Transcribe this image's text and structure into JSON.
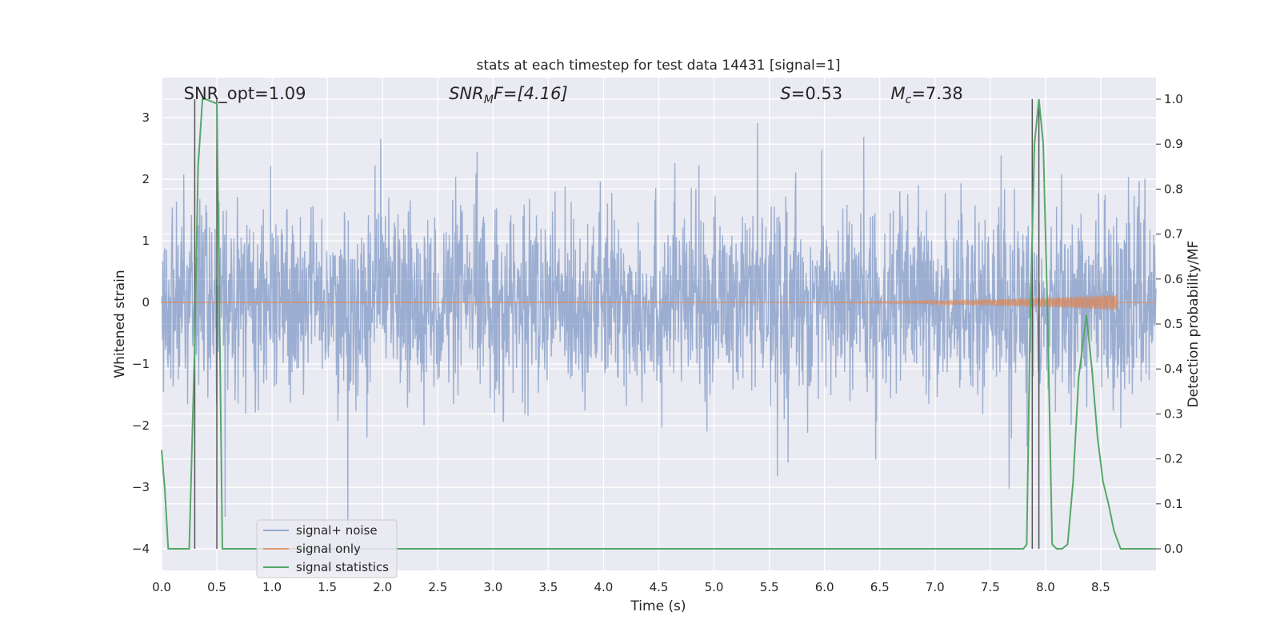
{
  "chart_data": {
    "type": "line",
    "title": "stats at each timestep for test data 14431 [signal=1]",
    "xlabel": "Time (s)",
    "ylabel": "Whitened strain",
    "y2label": "Detection probability/MF",
    "xlim": [
      0,
      9.0
    ],
    "ylim": [
      -4.35,
      3.65
    ],
    "y2lim": [
      -0.048,
      1.048
    ],
    "grid": true,
    "x_ticks": [
      "0.0",
      "0.5",
      "1.0",
      "1.5",
      "2.0",
      "2.5",
      "3.0",
      "3.5",
      "4.0",
      "4.5",
      "5.0",
      "5.5",
      "6.0",
      "6.5",
      "7.0",
      "7.5",
      "8.0",
      "8.5"
    ],
    "y_ticks": [
      "3",
      "2",
      "1",
      "0",
      "−1",
      "−2",
      "−3",
      "−4"
    ],
    "y2_ticks": [
      "1.0",
      "0.9",
      "0.8",
      "0.7",
      "0.6",
      "0.5",
      "0.4",
      "0.3",
      "0.2",
      "0.1",
      "0.0"
    ],
    "annotations": [
      {
        "label": "SNR_opt=1.09",
        "x": 0.2
      },
      {
        "label": "SNR",
        "sub": "M",
        "suffix": "F=[4.16]",
        "italic": true,
        "x": 2.6
      },
      {
        "label": "S",
        "suffix": "=0.53",
        "italic": true,
        "x": 5.6
      },
      {
        "label": "M",
        "sub": "c",
        "suffix": "=7.38",
        "italic": true,
        "x": 6.6
      }
    ],
    "vertical_lines": [
      0.3,
      0.5,
      7.88,
      7.94
    ],
    "series": [
      {
        "name": "signal+ noise",
        "color": "#4c72b0",
        "axis": "left",
        "description": "whitened noise, std≈0.75, spikes up to about ±3.3",
        "noise_std": 0.75
      },
      {
        "name": "signal only",
        "color": "#dd8452",
        "axis": "left",
        "description": "chirp growing in amplitude, ending near 8.65 s",
        "chirp_end": 8.65,
        "peak_amplitude": 0.13
      },
      {
        "name": "signal statistics",
        "color": "#55a868",
        "axis": "right",
        "x": [
          0.0,
          0.03,
          0.06,
          0.1,
          0.2,
          0.25,
          0.3,
          0.33,
          0.37,
          0.4,
          0.45,
          0.5,
          0.55,
          0.6,
          1.0,
          2.0,
          3.0,
          4.0,
          5.0,
          6.0,
          7.0,
          7.5,
          7.8,
          7.83,
          7.86,
          7.9,
          7.94,
          7.98,
          8.02,
          8.06,
          8.1,
          8.15,
          8.2,
          8.25,
          8.3,
          8.37,
          8.42,
          8.47,
          8.52,
          8.57,
          8.62,
          8.68,
          9.0
        ],
        "y": [
          0.22,
          0.13,
          0.0,
          0.0,
          0.0,
          0.0,
          0.45,
          0.85,
          1.0,
          1.0,
          0.995,
          0.99,
          0.0,
          0.0,
          0.0,
          0.0,
          0.0,
          0.0,
          0.0,
          0.0,
          0.0,
          0.0,
          0.0,
          0.01,
          0.5,
          0.9,
          1.0,
          0.9,
          0.5,
          0.01,
          0.0,
          0.0,
          0.01,
          0.15,
          0.38,
          0.52,
          0.4,
          0.25,
          0.15,
          0.1,
          0.04,
          0.0,
          0.0
        ]
      }
    ]
  },
  "legend": {
    "placement": "lower-left",
    "items": [
      {
        "label": "signal+ noise",
        "color": "#4c72b0"
      },
      {
        "label": "signal only",
        "color": "#dd8452"
      },
      {
        "label": "signal statistics",
        "color": "#55a868"
      }
    ]
  }
}
